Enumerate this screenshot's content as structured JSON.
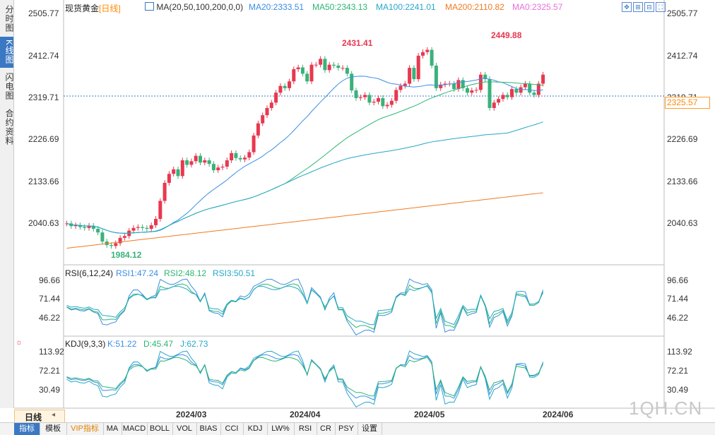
{
  "header": {
    "instrument": "现货黄金",
    "period": "[日线]",
    "ma_title": "MA(20,50,100,200,0,0)",
    "ma_values": [
      {
        "label": "MA20:2333.51",
        "color": "#3a8ee6"
      },
      {
        "label": "MA50:2343.13",
        "color": "#2bb673"
      },
      {
        "label": "MA100:2241.01",
        "color": "#26a7c8"
      },
      {
        "label": "MA200:2110.82",
        "color": "#f07a20"
      },
      {
        "label": "MA0:2325.57",
        "color": "#e870d8"
      }
    ]
  },
  "left_tabs": [
    {
      "label": "分时图",
      "active": false
    },
    {
      "label": "K线图",
      "active": true
    },
    {
      "label": "闪电图",
      "active": false
    },
    {
      "label": "合约资料",
      "active": false
    }
  ],
  "price_axis": [
    "2505.77",
    "2412.74",
    "2319.71",
    "2226.69",
    "2133.66",
    "2040.63"
  ],
  "right_price_axis": [
    "2505.77",
    "2412.74",
    "2319.71",
    "2226.69",
    "2133.66",
    "2040.63"
  ],
  "current_price": "2325.57",
  "annotations": {
    "high1": "2431.41",
    "high2": "2449.88",
    "low": "1984.12"
  },
  "rsi": {
    "title": "RSI(6,12,24)",
    "values": [
      {
        "label": "RSI1:47.24",
        "color": "#3a8ee6"
      },
      {
        "label": "RSI2:48.12",
        "color": "#2bb673"
      },
      {
        "label": "RSI3:50.51",
        "color": "#26a7c8"
      }
    ],
    "axis": [
      "96.66",
      "71.44",
      "46.22"
    ]
  },
  "kdj": {
    "title": "KDJ(9,3,3)",
    "values": [
      {
        "label": "K:51.22",
        "color": "#3a8ee6"
      },
      {
        "label": "D:45.47",
        "color": "#2bb673"
      },
      {
        "label": "J:62.73",
        "color": "#26a7c8"
      }
    ],
    "axis": [
      "113.92",
      "72.21",
      "30.49"
    ]
  },
  "x_axis": [
    "2024/03",
    "2024/04",
    "2024/05",
    "2024/06"
  ],
  "period_selector": "日线",
  "bottom_tabs": [
    {
      "label": "指标",
      "active": true,
      "vip": false
    },
    {
      "label": "模板",
      "active": false,
      "vip": false
    },
    {
      "label": "VIP指标",
      "active": false,
      "vip": true
    },
    {
      "label": "MA",
      "active": false,
      "vip": false
    },
    {
      "label": "MACD",
      "active": false,
      "vip": false
    },
    {
      "label": "BOLL",
      "active": false,
      "vip": false
    },
    {
      "label": "VOL",
      "active": false,
      "vip": false
    },
    {
      "label": "BIAS",
      "active": false,
      "vip": false
    },
    {
      "label": "CCI",
      "active": false,
      "vip": false
    },
    {
      "label": "KDJ",
      "active": false,
      "vip": false
    },
    {
      "label": "LW%",
      "active": false,
      "vip": false
    },
    {
      "label": "RSI",
      "active": false,
      "vip": false
    },
    {
      "label": "CR",
      "active": false,
      "vip": false
    },
    {
      "label": "PSY",
      "active": false,
      "vip": false
    },
    {
      "label": "设置",
      "active": false,
      "vip": false
    }
  ],
  "watermark": "1QH.CN",
  "colors": {
    "up": "#e8384f",
    "down": "#39b27a",
    "accent": "#3a78c3"
  }
}
